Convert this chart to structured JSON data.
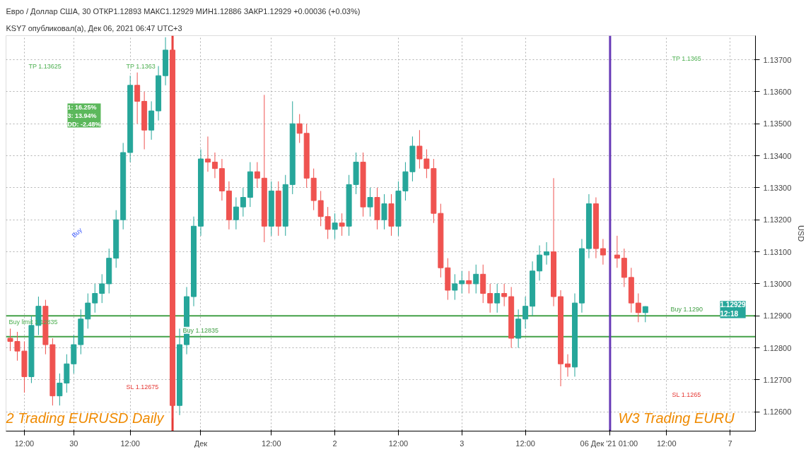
{
  "chart_data": {
    "type": "candlestick",
    "title": "Евро / Доллар США, 30  ОТКР1.12893  МАКС1.12929  МИН1.12886  ЗАКР1.12929  +0.00036 (+0.03%)",
    "categories": [
      null,
      null,
      "12:00",
      null,
      null,
      null,
      null,
      null,
      null,
      "30",
      null,
      null,
      null,
      null,
      null,
      null,
      null,
      "12:00",
      null,
      null,
      null,
      null,
      null,
      null,
      null,
      null,
      null,
      "Дек",
      null,
      null,
      null,
      null,
      null,
      null,
      null,
      null,
      null,
      "12:00",
      null,
      null,
      null,
      null,
      null,
      null,
      null,
      null,
      "2",
      null,
      null,
      null,
      null,
      null,
      null,
      null,
      null,
      "12:00",
      null,
      null,
      null,
      null,
      null,
      null,
      null,
      null,
      "3",
      null,
      null,
      null,
      null,
      null,
      null,
      null,
      null,
      "12:00",
      null,
      null,
      null,
      null,
      null,
      null,
      null,
      null,
      null,
      null,
      null,
      "06 Дек '21  01:00",
      null,
      null,
      null,
      null,
      null,
      null,
      null,
      "12:00",
      null,
      null,
      null,
      null,
      null,
      null,
      null,
      null,
      "7",
      null,
      null,
      null
    ],
    "ohlc": [
      [
        1.1283,
        1.1286,
        1.1279,
        1.1282
      ],
      [
        1.1282,
        1.1285,
        1.1276,
        1.1279
      ],
      [
        1.1279,
        1.1282,
        1.1266,
        1.1271
      ],
      [
        1.1271,
        1.129,
        1.1269,
        1.1287
      ],
      [
        1.1287,
        1.1296,
        1.1284,
        1.1293
      ],
      [
        1.1293,
        1.1295,
        1.1278,
        1.1281
      ],
      [
        1.1281,
        1.1283,
        1.1262,
        1.1265
      ],
      [
        1.1265,
        1.1272,
        1.1262,
        1.1269
      ],
      [
        1.1269,
        1.1278,
        1.1266,
        1.1275
      ],
      [
        1.1275,
        1.1284,
        1.1272,
        1.1281
      ],
      [
        1.1281,
        1.1292,
        1.1278,
        1.1289
      ],
      [
        1.1289,
        1.1297,
        1.1286,
        1.1294
      ],
      [
        1.1294,
        1.13,
        1.1291,
        1.1297
      ],
      [
        1.1297,
        1.1303,
        1.1294,
        1.13
      ],
      [
        1.13,
        1.1311,
        1.1297,
        1.1308
      ],
      [
        1.1308,
        1.1323,
        1.1305,
        1.132
      ],
      [
        1.132,
        1.1344,
        1.1317,
        1.1341
      ],
      [
        1.1341,
        1.1365,
        1.1338,
        1.1362
      ],
      [
        1.1362,
        1.1366,
        1.135,
        1.1357
      ],
      [
        1.1357,
        1.136,
        1.1342,
        1.1348
      ],
      [
        1.1348,
        1.1357,
        1.1345,
        1.1354
      ],
      [
        1.1354,
        1.1368,
        1.1351,
        1.1365
      ],
      [
        1.1365,
        1.1377,
        1.1362,
        1.1373
      ],
      [
        1.1373,
        1.1377,
        1.1258,
        1.1262
      ],
      [
        1.1262,
        1.1286,
        1.1259,
        1.1281
      ],
      [
        1.1281,
        1.1299,
        1.1278,
        1.1296
      ],
      [
        1.1296,
        1.1321,
        1.1293,
        1.1318
      ],
      [
        1.1318,
        1.1342,
        1.1315,
        1.1339
      ],
      [
        1.1339,
        1.1346,
        1.1335,
        1.1338
      ],
      [
        1.1338,
        1.1341,
        1.1333,
        1.1336
      ],
      [
        1.1336,
        1.1339,
        1.1326,
        1.1329
      ],
      [
        1.1329,
        1.1332,
        1.1317,
        1.132
      ],
      [
        1.132,
        1.1327,
        1.1317,
        1.1324
      ],
      [
        1.1324,
        1.133,
        1.1321,
        1.1327
      ],
      [
        1.1327,
        1.1338,
        1.1324,
        1.1335
      ],
      [
        1.1335,
        1.1338,
        1.133,
        1.1333
      ],
      [
        1.1333,
        1.1359,
        1.1313,
        1.1318
      ],
      [
        1.1318,
        1.1332,
        1.1315,
        1.1329
      ],
      [
        1.1329,
        1.1332,
        1.1315,
        1.1318
      ],
      [
        1.1318,
        1.1334,
        1.1315,
        1.1331
      ],
      [
        1.1331,
        1.1357,
        1.1328,
        1.135
      ],
      [
        1.135,
        1.1353,
        1.1344,
        1.1347
      ],
      [
        1.1347,
        1.135,
        1.133,
        1.1333
      ],
      [
        1.1333,
        1.1336,
        1.1323,
        1.1326
      ],
      [
        1.1326,
        1.1329,
        1.1318,
        1.1321
      ],
      [
        1.1321,
        1.1324,
        1.1314,
        1.1317
      ],
      [
        1.1317,
        1.1322,
        1.1314,
        1.1319
      ],
      [
        1.1319,
        1.1322,
        1.1315,
        1.1318
      ],
      [
        1.1318,
        1.1334,
        1.1315,
        1.1331
      ],
      [
        1.1331,
        1.1341,
        1.1328,
        1.1338
      ],
      [
        1.1338,
        1.1341,
        1.1321,
        1.1324
      ],
      [
        1.1324,
        1.133,
        1.1321,
        1.1327
      ],
      [
        1.1327,
        1.133,
        1.1317,
        1.132
      ],
      [
        1.132,
        1.1328,
        1.1317,
        1.1325
      ],
      [
        1.1325,
        1.1328,
        1.1315,
        1.1318
      ],
      [
        1.1318,
        1.1332,
        1.1315,
        1.1329
      ],
      [
        1.1329,
        1.1338,
        1.1326,
        1.1335
      ],
      [
        1.1335,
        1.1346,
        1.1332,
        1.1343
      ],
      [
        1.1343,
        1.1348,
        1.1336,
        1.1339
      ],
      [
        1.1339,
        1.1342,
        1.1333,
        1.1336
      ],
      [
        1.1336,
        1.1339,
        1.1319,
        1.1322
      ],
      [
        1.1322,
        1.1325,
        1.1302,
        1.1305
      ],
      [
        1.1305,
        1.1308,
        1.1295,
        1.1298
      ],
      [
        1.1298,
        1.1303,
        1.1295,
        1.13
      ],
      [
        1.13,
        1.1304,
        1.1297,
        1.1301
      ],
      [
        1.1301,
        1.1304,
        1.1297,
        1.13
      ],
      [
        1.13,
        1.1306,
        1.1297,
        1.1303
      ],
      [
        1.1303,
        1.1306,
        1.1294,
        1.1297
      ],
      [
        1.1297,
        1.13,
        1.1291,
        1.1294
      ],
      [
        1.1294,
        1.13,
        1.1291,
        1.1297
      ],
      [
        1.1297,
        1.13,
        1.1293,
        1.1296
      ],
      [
        1.1296,
        1.1299,
        1.128,
        1.1283
      ],
      [
        1.1283,
        1.1292,
        1.128,
        1.1289
      ],
      [
        1.1289,
        1.1296,
        1.1286,
        1.1293
      ],
      [
        1.1293,
        1.1307,
        1.129,
        1.1304
      ],
      [
        1.1304,
        1.1312,
        1.1301,
        1.1309
      ],
      [
        1.1309,
        1.1313,
        1.1306,
        1.131
      ],
      [
        1.131,
        1.1333,
        1.1293,
        1.1296
      ],
      [
        1.1296,
        1.1298,
        1.1268,
        1.1275
      ],
      [
        1.1275,
        1.1278,
        1.1271,
        1.1274
      ],
      [
        1.1274,
        1.1297,
        1.1271,
        1.1294
      ],
      [
        1.1294,
        1.1314,
        1.1291,
        1.1311
      ],
      [
        1.1311,
        1.1328,
        1.1308,
        1.1325
      ],
      [
        1.1325,
        1.1327,
        1.1308,
        1.1311
      ],
      [
        1.1311,
        1.1314,
        1.1306,
        1.1309
      ],
      null,
      [
        1.1309,
        1.1315,
        1.1305,
        1.1308
      ],
      [
        1.1308,
        1.1311,
        1.1299,
        1.1302
      ],
      [
        1.1302,
        1.1305,
        1.1291,
        1.1294
      ],
      [
        1.1294,
        1.1297,
        1.1288,
        1.1291
      ],
      [
        1.1291,
        1.1293,
        1.1288,
        1.12929
      ],
      null,
      null,
      null,
      null,
      null,
      null,
      null,
      null,
      null,
      null,
      null,
      null,
      null,
      null,
      null
    ],
    "colors": [
      "#ef5350",
      "#ef5350",
      "#ef5350",
      "#26a69a",
      "#26a69a",
      "#ef5350",
      "#ef5350",
      "#26a69a",
      "#26a69a",
      "#26a69a",
      "#26a69a",
      "#26a69a",
      "#26a69a",
      "#26a69a",
      "#26a69a",
      "#26a69a",
      "#26a69a",
      "#26a69a",
      "#ef5350",
      "#ef5350",
      "#26a69a",
      "#26a69a",
      "#26a69a",
      "#ef5350",
      "#26a69a",
      "#26a69a",
      "#26a69a",
      "#26a69a",
      "#ef5350",
      "#ef5350",
      "#ef5350",
      "#ef5350",
      "#26a69a",
      "#26a69a",
      "#26a69a",
      "#ef5350",
      "#ef5350",
      "#26a69a",
      "#ef5350",
      "#26a69a",
      "#26a69a",
      "#ef5350",
      "#ef5350",
      "#ef5350",
      "#ef5350",
      "#ef5350",
      "#26a69a",
      "#ef5350",
      "#26a69a",
      "#26a69a",
      "#ef5350",
      "#26a69a",
      "#ef5350",
      "#26a69a",
      "#ef5350",
      "#26a69a",
      "#26a69a",
      "#26a69a",
      "#ef5350",
      "#ef5350",
      "#ef5350",
      "#ef5350",
      "#ef5350",
      "#26a69a",
      "#26a69a",
      "#ef5350",
      "#26a69a",
      "#ef5350",
      "#ef5350",
      "#26a69a",
      "#ef5350",
      "#ef5350",
      "#26a69a",
      "#26a69a",
      "#26a69a",
      "#26a69a",
      "#26a69a",
      "#ef5350",
      "#ef5350",
      "#ef5350",
      "#26a69a",
      "#26a69a",
      "#26a69a",
      "#ef5350",
      "#ef5350",
      null,
      "#ef5350",
      "#ef5350",
      "#ef5350",
      "#ef5350",
      "#26a69a",
      null,
      null,
      null,
      null,
      null,
      null,
      null,
      null,
      null,
      null,
      null,
      null,
      null,
      null,
      null
    ],
    "ylim": [
      1.1254,
      1.13775
    ],
    "yticks": [
      {
        "value": 1.126,
        "label": "1.12600"
      },
      {
        "value": 1.127,
        "label": "1.12700"
      },
      {
        "value": 1.128,
        "label": "1.12800"
      },
      {
        "value": 1.129,
        "label": "1.12900"
      },
      {
        "value": 1.13,
        "label": "1.13000"
      },
      {
        "value": 1.131,
        "label": "1.13100"
      },
      {
        "value": 1.132,
        "label": "1.13200"
      },
      {
        "value": 1.133,
        "label": "1.13300"
      },
      {
        "value": 1.134,
        "label": "1.13400"
      },
      {
        "value": 1.135,
        "label": "1.13500"
      },
      {
        "value": 1.136,
        "label": "1.13600"
      },
      {
        "value": 1.137,
        "label": "1.13700"
      }
    ],
    "ylabel": "USD",
    "grid": true,
    "ref_lines": [
      {
        "axis": "y",
        "value": 1.12835,
        "label": "Buy 1.12835",
        "color": "#43a047"
      },
      {
        "axis": "y",
        "value": 1.129,
        "label": "Buy 1.1290",
        "color": "#43a047"
      },
      {
        "axis": "x",
        "value": "06 Дек '21  01:00",
        "color": "#673ab7"
      }
    ],
    "annotations": [
      "TP 1.13625",
      "TP 1.1363",
      "SL 1.12675",
      "Buy limit 1.12835",
      "TP 1.1365",
      "SL 1.1265",
      "1:   16.25%\n3:   13.94%\nDD: -2.48%",
      "Buy",
      "1.12929\n12:18",
      "KSY7 опубликовал(а), Дек 06, 2021 06:47 UTC+3",
      "2    Trading EURUSD Daily",
      "W3    Trading EURU"
    ]
  }
}
